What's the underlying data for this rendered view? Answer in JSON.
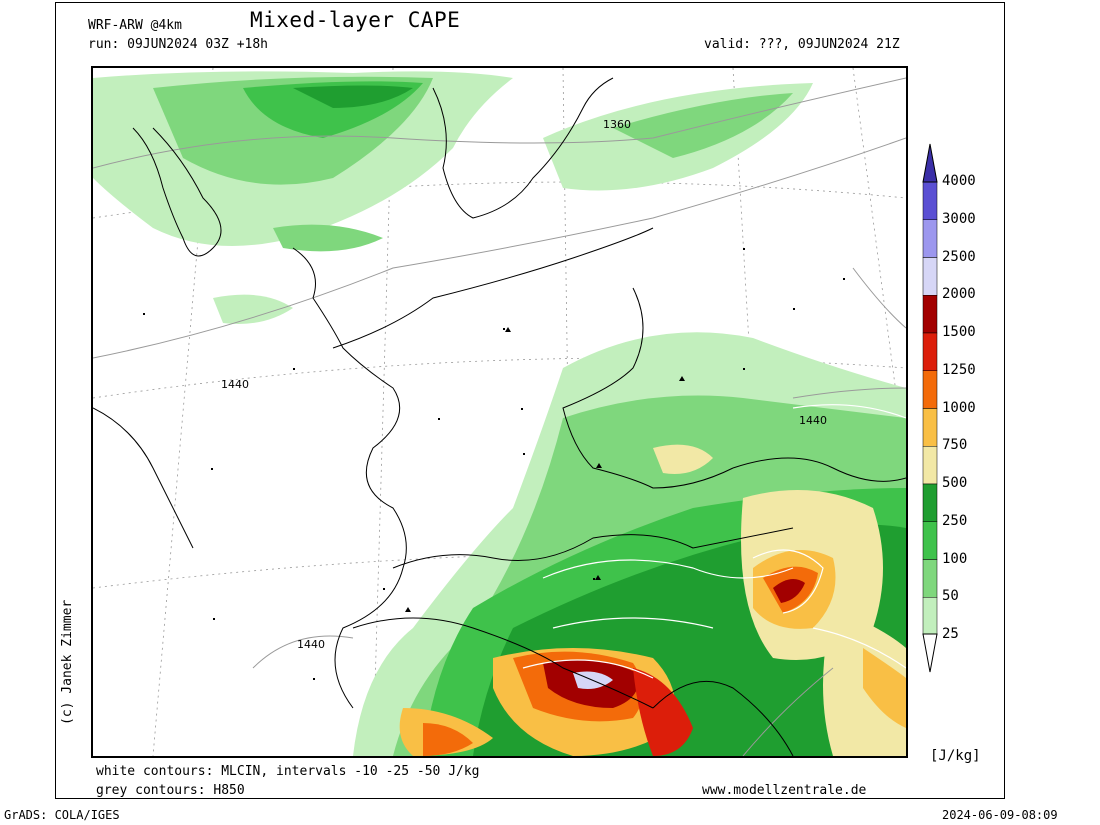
{
  "header": {
    "model": "WRF-ARW @4km",
    "title": "Mixed-layer CAPE",
    "run": "run: 09JUN2024 03Z +18h",
    "valid": "valid: ???, 09JUN2024 21Z"
  },
  "footer": {
    "white_contours": "white contours: MLCIN, intervals -10 -25 -50 J/kg",
    "grey_contours": "grey contours: H850",
    "website": "www.modellzentrale.de",
    "grads": "GrADS: COLA/IGES",
    "timestamp": "2024-06-09-08:09",
    "credit": "(c) Janek Zimmer"
  },
  "map": {
    "contour_labels": [
      "1360",
      "1440",
      "1440",
      "1440"
    ]
  },
  "legend": {
    "unit": "[J/kg]",
    "levels": [
      {
        "label": "4000",
        "color": "#3b2fa8"
      },
      {
        "label": "3000",
        "color": "#5a4fd3"
      },
      {
        "label": "2500",
        "color": "#9c97ee"
      },
      {
        "label": "2000",
        "color": "#d6d6f6"
      },
      {
        "label": "1500",
        "color": "#a20000"
      },
      {
        "label": "1250",
        "color": "#dc1e0a"
      },
      {
        "label": "1000",
        "color": "#f36b0a"
      },
      {
        "label": "750",
        "color": "#f9bf45"
      },
      {
        "label": "500",
        "color": "#f2e8a6"
      },
      {
        "label": "250",
        "color": "#1f9e30"
      },
      {
        "label": "100",
        "color": "#3fc24b"
      },
      {
        "label": "50",
        "color": "#7fd77d"
      },
      {
        "label": "25",
        "color": "#c2efbd"
      }
    ]
  }
}
